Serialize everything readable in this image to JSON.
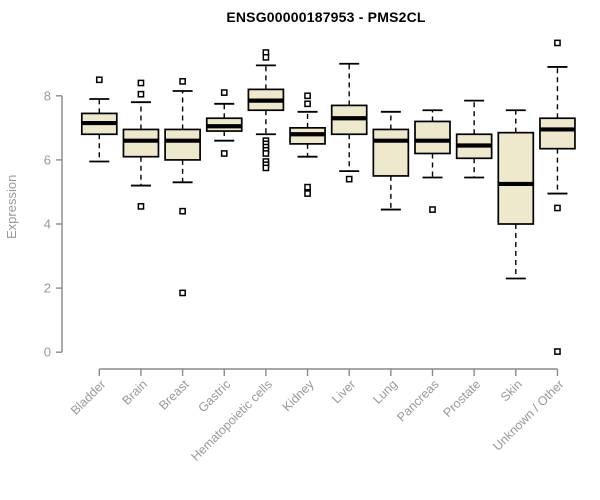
{
  "page": {
    "background": "#ffffff"
  },
  "chart_data": {
    "type": "boxplot",
    "title": "ENSG00000187953 - PMS2CL",
    "ylabel": "Expression",
    "xlabel": "",
    "yticks": [
      0,
      2,
      4,
      6,
      8
    ],
    "ylim": [
      0,
      9.8
    ],
    "grid": false,
    "legend": "none",
    "categories": [
      "Bladder",
      "Brain",
      "Breast",
      "Gastric",
      "Hematopoietic cells",
      "Kidney",
      "Liver",
      "Lung",
      "Pancreas",
      "Prostate",
      "Skin",
      "Unknown / Other"
    ],
    "boxes": [
      {
        "category": "Bladder",
        "whisker_low": 5.95,
        "q1": 6.8,
        "median": 7.15,
        "q3": 7.45,
        "whisker_high": 7.9,
        "outliers": [
          8.5
        ]
      },
      {
        "category": "Brain",
        "whisker_low": 5.2,
        "q1": 6.1,
        "median": 6.6,
        "q3": 6.95,
        "whisker_high": 7.8,
        "outliers": [
          8.4,
          8.05,
          4.55
        ]
      },
      {
        "category": "Breast",
        "whisker_low": 5.3,
        "q1": 6.0,
        "median": 6.6,
        "q3": 6.95,
        "whisker_high": 8.15,
        "outliers": [
          8.45,
          4.4,
          1.85
        ]
      },
      {
        "category": "Gastric",
        "whisker_low": 6.6,
        "q1": 6.9,
        "median": 7.05,
        "q3": 7.3,
        "whisker_high": 7.75,
        "outliers": [
          8.1,
          6.2
        ]
      },
      {
        "category": "Hematopoietic cells",
        "whisker_low": 6.8,
        "q1": 7.55,
        "median": 7.85,
        "q3": 8.2,
        "whisker_high": 8.95,
        "outliers": [
          9.35,
          9.2,
          6.6,
          6.5,
          6.4,
          6.3,
          6.2,
          5.95,
          5.85,
          5.75
        ]
      },
      {
        "category": "Kidney",
        "whisker_low": 6.1,
        "q1": 6.5,
        "median": 6.8,
        "q3": 7.0,
        "whisker_high": 7.5,
        "outliers": [
          8.0,
          7.75,
          5.15,
          4.95
        ]
      },
      {
        "category": "Liver",
        "whisker_low": 5.65,
        "q1": 6.8,
        "median": 7.3,
        "q3": 7.7,
        "whisker_high": 9.0,
        "outliers": [
          5.4
        ]
      },
      {
        "category": "Lung",
        "whisker_low": 4.45,
        "q1": 5.5,
        "median": 6.6,
        "q3": 6.95,
        "whisker_high": 7.5,
        "outliers": []
      },
      {
        "category": "Pancreas",
        "whisker_low": 5.45,
        "q1": 6.2,
        "median": 6.6,
        "q3": 7.2,
        "whisker_high": 7.55,
        "outliers": [
          4.45
        ]
      },
      {
        "category": "Prostate",
        "whisker_low": 5.45,
        "q1": 6.05,
        "median": 6.45,
        "q3": 6.8,
        "whisker_high": 7.85,
        "outliers": []
      },
      {
        "category": "Skin",
        "whisker_low": 2.3,
        "q1": 4.0,
        "median": 5.25,
        "q3": 6.85,
        "whisker_high": 7.55,
        "outliers": []
      },
      {
        "category": "Unknown / Other",
        "whisker_low": 4.95,
        "q1": 6.35,
        "median": 6.95,
        "q3": 7.3,
        "whisker_high": 8.9,
        "outliers": [
          9.65,
          4.5,
          0.02
        ]
      }
    ],
    "colors": {
      "box_fill": "#EEE8CD",
      "box_stroke": "#000000",
      "median": "#000000",
      "whisker": "#000000",
      "outlier_stroke": "#000000",
      "axis": "#8a8a8a",
      "tick_label": "#999999",
      "title": "#000000"
    }
  }
}
